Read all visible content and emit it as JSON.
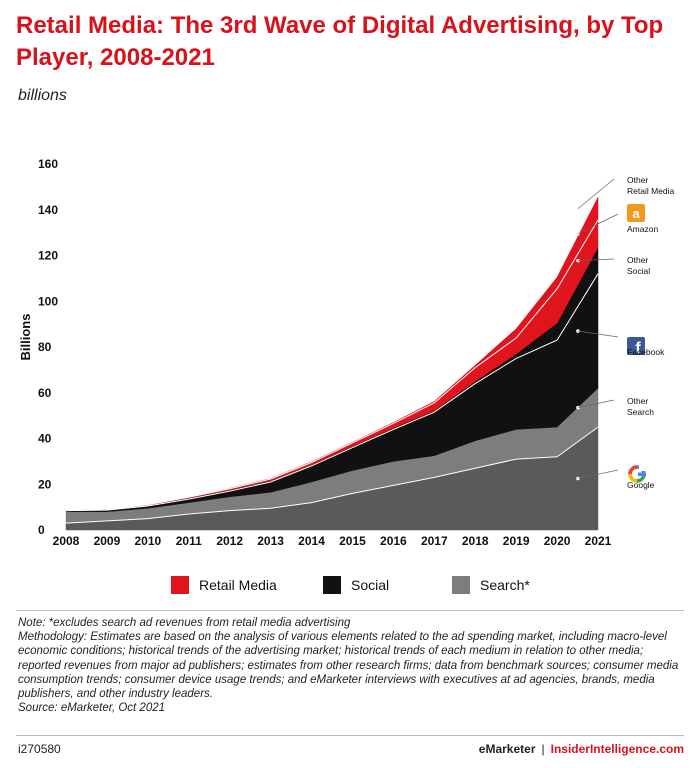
{
  "header": {
    "title": "Retail Media: The 3rd Wave of Digital Advertising, by Top Player, 2008-2021",
    "subtitle": "billions"
  },
  "colors": {
    "brand_red": "#d7121b",
    "retail_media": "#e0141c",
    "social": "#111111",
    "search": "#6b6b6b",
    "google_area": "#5a5a5a",
    "other_search_area": "#7d7d7d"
  },
  "chart_data": {
    "type": "area",
    "stacked": true,
    "ylabel": "Billions",
    "xlabel": "",
    "ylim": [
      0,
      160
    ],
    "yticks": [
      0,
      20,
      40,
      60,
      80,
      100,
      120,
      140,
      160
    ],
    "x": [
      "2008",
      "2009",
      "2010",
      "2011",
      "2012",
      "2013",
      "2014",
      "2015",
      "2016",
      "2017",
      "2018",
      "2019",
      "2020",
      "2021"
    ],
    "series": [
      {
        "name": "Google",
        "group": "Search",
        "values": [
          3,
          4,
          5,
          7,
          8.5,
          9.5,
          12,
          16,
          19.5,
          23,
          27,
          31,
          32,
          45
        ]
      },
      {
        "name": "Other Search",
        "group": "Search",
        "values": [
          5,
          4,
          4.5,
          5,
          6,
          7,
          9,
          10,
          10.5,
          9.5,
          12,
          13,
          13,
          17
        ]
      },
      {
        "name": "Facebook",
        "group": "Social",
        "values": [
          0.5,
          0.7,
          1,
          1.5,
          2.5,
          4.5,
          7,
          10,
          14,
          19,
          25,
          31,
          38,
          50
        ]
      },
      {
        "name": "Other Social",
        "group": "Social",
        "values": [
          0,
          0.2,
          0.3,
          0.5,
          0.5,
          0.5,
          0.5,
          0.6,
          0.6,
          0.6,
          1,
          2,
          7.5,
          11.5
        ]
      },
      {
        "name": "Amazon",
        "group": "Retail Media",
        "values": [
          0,
          0,
          0.2,
          0.3,
          0.5,
          0.8,
          1,
          1.5,
          2,
          3.5,
          6,
          7,
          15,
          12
        ]
      },
      {
        "name": "Other Retail Media",
        "group": "Retail Media",
        "values": [
          0,
          0,
          0,
          0.1,
          0.2,
          0.2,
          0.3,
          0.3,
          0.4,
          0.6,
          1,
          4,
          5,
          10
        ]
      }
    ],
    "right_labels": [
      {
        "text": "Other Retail Media",
        "series": "Other Retail Media",
        "icon": ""
      },
      {
        "text": "Amazon",
        "series": "Amazon",
        "icon": "amazon-logo"
      },
      {
        "text": "Other Social",
        "series": "Other Social",
        "icon": ""
      },
      {
        "text": "Facebook",
        "series": "Facebook",
        "icon": "facebook-logo"
      },
      {
        "text": "Other Search",
        "series": "Other Search",
        "icon": ""
      },
      {
        "text": "Google",
        "series": "Google",
        "icon": "google-logo"
      }
    ],
    "legend": [
      "Retail Media",
      "Social",
      "Search*"
    ],
    "legend_placement": "bottom",
    "grid": false
  },
  "legend": {
    "retail": "Retail Media",
    "social": "Social",
    "search": "Search*"
  },
  "notes": {
    "note": "Note: *excludes search ad revenues from retail media advertising",
    "methodology": "Methodology: Estimates are based on the analysis of various elements related to the ad spending market, including macro-level economic conditions; historical trends of the advertising market; historical trends of each medium in relation to other media; reported revenues from major ad publishers; estimates from other research firms; data from benchmark sources; consumer media consumption trends; consumer device usage trends; and eMarketer interviews with executives at ad agencies, brands, media publishers, and other industry leaders.",
    "source": "Source: eMarketer, Oct 2021"
  },
  "footer": {
    "id": "i270580",
    "brand_left": "eMarketer",
    "separator": "|",
    "brand_right": "InsiderIntelligence.com"
  }
}
